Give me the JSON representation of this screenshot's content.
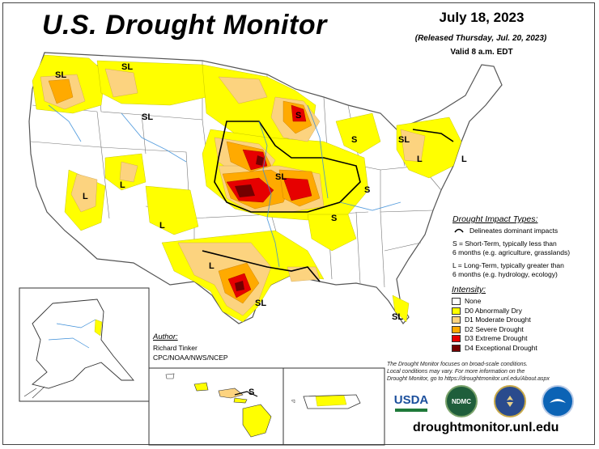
{
  "header": {
    "title": "U.S. Drought Monitor",
    "date": "July 18, 2023",
    "released": "(Released Thursday, Jul. 20, 2023)",
    "valid": "Valid 8 a.m. EDT"
  },
  "impact_legend": {
    "title": "Drought Impact Types:",
    "delineates": "Delineates dominant impacts",
    "short_term_1": "S = Short-Term, typically less than",
    "short_term_2": "6 months (e.g. agriculture, grasslands)",
    "long_term_1": "L = Long-Term, typically greater than",
    "long_term_2": "6 months (e.g. hydrology, ecology)"
  },
  "intensity_legend": {
    "title": "Intensity:",
    "categories": [
      {
        "label": "None",
        "color": "#ffffff"
      },
      {
        "label": "D0 Abnormally Dry",
        "color": "#ffff00"
      },
      {
        "label": "D1 Moderate Drought",
        "color": "#fcd37f"
      },
      {
        "label": "D2 Severe Drought",
        "color": "#ffaa00"
      },
      {
        "label": "D3 Extreme Drought",
        "color": "#e60000"
      },
      {
        "label": "D4 Exceptional Drought",
        "color": "#730000"
      }
    ]
  },
  "author": {
    "label": "Author:",
    "name": "Richard Tinker",
    "org": "CPC/NOAA/NWS/NCEP"
  },
  "disclaimer": {
    "line1": "The Drought Monitor focuses on broad-scale conditions.",
    "line2": "Local conditions may vary. For more information on the",
    "line3": "Drought Monitor, go to https://droughtmonitor.unl.edu/About.aspx"
  },
  "map_labels": [
    "SL",
    "SL",
    "SL",
    "L",
    "L",
    "S",
    "SL",
    "L",
    "L",
    "SL",
    "S",
    "L",
    "S",
    "SL",
    "S",
    "SL",
    "S",
    "SL",
    "L",
    "L"
  ],
  "logos": {
    "usda": "USDA",
    "ndmc": "NDMC"
  },
  "url": "droughtmonitor.unl.edu"
}
